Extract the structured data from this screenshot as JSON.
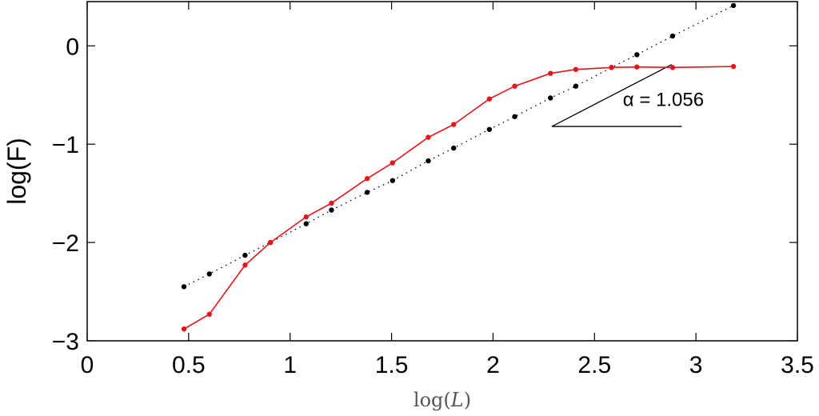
{
  "chart_data": {
    "type": "line",
    "xlabel": "log(",
    "xlabel_var": "L",
    "xlabel_close": ")",
    "ylabel": "log(F)",
    "xlim": [
      0,
      3.5
    ],
    "ylim": [
      -3,
      0.45
    ],
    "grid": false,
    "x_ticks": [
      0,
      0.5,
      1,
      1.5,
      2,
      2.5,
      3,
      3.5
    ],
    "x_tick_labels": [
      "0",
      "0.5",
      "1",
      "1.5",
      "2",
      "2.5",
      "3",
      "3.5"
    ],
    "y_ticks": [
      0,
      -1,
      -2,
      -3
    ],
    "y_tick_labels": [
      "0",
      "−1",
      "−2",
      "−3"
    ],
    "series": [
      {
        "style": "dotted-black",
        "color": "#000000",
        "x": [
          0.477,
          0.602,
          0.778,
          0.903,
          1.079,
          1.204,
          1.38,
          1.505,
          1.681,
          1.806,
          1.982,
          2.107,
          2.283,
          2.408,
          2.584,
          2.709,
          2.885,
          3.185
        ],
        "y": [
          -2.45,
          -2.32,
          -2.13,
          -2.0,
          -1.81,
          -1.67,
          -1.49,
          -1.37,
          -1.17,
          -1.04,
          -0.85,
          -0.72,
          -0.53,
          -0.41,
          -0.22,
          -0.09,
          0.1,
          0.41
        ]
      },
      {
        "style": "solid-red",
        "color": "#e8141a",
        "x": [
          0.477,
          0.602,
          0.778,
          0.903,
          1.079,
          1.204,
          1.38,
          1.505,
          1.681,
          1.806,
          1.982,
          2.107,
          2.283,
          2.408,
          2.584,
          2.709,
          2.885,
          3.185
        ],
        "y": [
          -2.88,
          -2.73,
          -2.23,
          -2.0,
          -1.74,
          -1.6,
          -1.35,
          -1.19,
          -0.93,
          -0.8,
          -0.54,
          -0.41,
          -0.28,
          -0.24,
          -0.22,
          -0.215,
          -0.22,
          -0.21
        ]
      }
    ],
    "annotation": {
      "text": "α = 1.056",
      "slope_line": {
        "x": [
          2.29,
          2.88
        ],
        "y": [
          -0.82,
          -0.19
        ]
      },
      "base_line": {
        "x": [
          2.29,
          2.93
        ],
        "y": [
          -0.82,
          -0.82
        ]
      },
      "text_at": {
        "x": 2.64,
        "y": -0.61
      }
    }
  }
}
